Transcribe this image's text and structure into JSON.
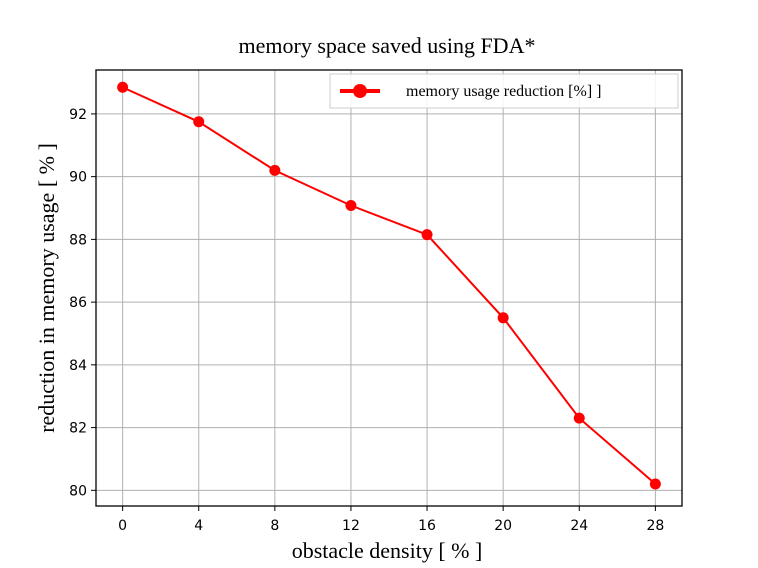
{
  "chart_data": {
    "type": "line",
    "title": "memory space saved using FDA*",
    "xlabel": "obstacle density [ % ]",
    "ylabel": "reduction in memory usage [ % ]",
    "x": [
      0,
      4,
      8,
      12,
      16,
      20,
      24,
      28
    ],
    "xticks": [
      0,
      4,
      8,
      12,
      16,
      20,
      24,
      28
    ],
    "yticks": [
      80,
      82,
      84,
      86,
      88,
      90,
      92
    ],
    "xlim": [
      -1.4,
      29.4
    ],
    "ylim": [
      79.5,
      93.4
    ],
    "grid": true,
    "legend_position": "top-right",
    "series": [
      {
        "name": "memory usage reduction [%] ]",
        "color": "#ff0000",
        "marker": "circle",
        "values": [
          92.85,
          91.75,
          90.2,
          89.08,
          88.15,
          85.5,
          82.3,
          80.2
        ]
      }
    ]
  }
}
